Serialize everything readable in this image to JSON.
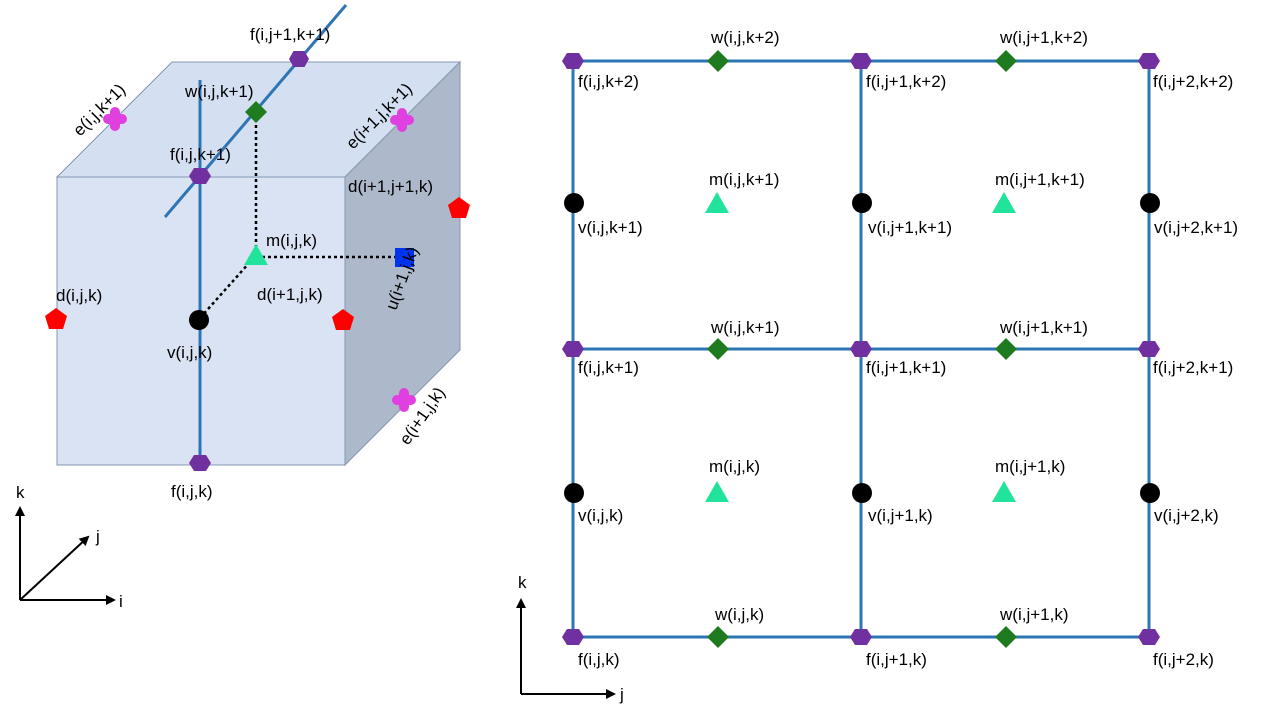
{
  "colors": {
    "cube_front": "#dae3f3",
    "cube_top": "#d4dff2",
    "cube_side": "#adb9ca",
    "cube_edge": "#8497b0",
    "line": "#2e75b6",
    "f_node": "#7030a0",
    "w_node": "#1e7c1e",
    "e_node": "#e040e0",
    "d_node": "#ff0000",
    "m_node": "#22e39b",
    "u_node": "#0033ee",
    "v_node": "#000000"
  },
  "cube": {
    "labels": {
      "f_top": "f(i,j+1,k+1)",
      "w_top": "w(i,j,k+1)",
      "f_mid": "f(i,j,k+1)",
      "f_bot": "f(i,j,k)",
      "e_left": "e(i,j,k+1)",
      "e_right": "e(i+1,j,k+1)",
      "e_lower": "e(i+1,j,k)",
      "d_back": "d(i+1,j+1,k)",
      "d_left": "d(i,j,k)",
      "d_front": "d(i+1,j,k)",
      "m": "m(i,j,k)",
      "u": "u(i+1,j,k)",
      "v": "v(i,j,k)"
    },
    "axes": {
      "k": "k",
      "j": "j",
      "i": "i"
    }
  },
  "grid": {
    "top_row": {
      "f": [
        "f(i,j,k+2)",
        "f(i,j+1,k+2)",
        "f(i,j+2,k+2)"
      ],
      "w": [
        "w(i,j,k+2)",
        "w(i,j+1,k+2)"
      ]
    },
    "mid_row": {
      "f": [
        "f(i,j,k+1)",
        "f(i,j+1,k+1)",
        "f(i,j+2,k+1)"
      ],
      "w": [
        "w(i,j,k+1)",
        "w(i,j+1,k+1)"
      ]
    },
    "bot_row": {
      "f": [
        "f(i,j,k)",
        "f(i,j+1,k)",
        "f(i,j+2,k)"
      ],
      "w": [
        "w(i,j,k)",
        "w(i,j+1,k)"
      ]
    },
    "upper_cells": {
      "v": [
        "v(i,j,k+1)",
        "v(i,j+1,k+1)",
        "v(i,j+2,k+1)"
      ],
      "m": [
        "m(i,j,k+1)",
        "m(i,j+1,k+1)"
      ]
    },
    "lower_cells": {
      "v": [
        "v(i,j,k)",
        "v(i,j+1,k)",
        "v(i,j+2,k)"
      ],
      "m": [
        "m(i,j,k)",
        "m(i,j+1,k)"
      ]
    },
    "axes": {
      "k": "k",
      "j": "j"
    }
  }
}
